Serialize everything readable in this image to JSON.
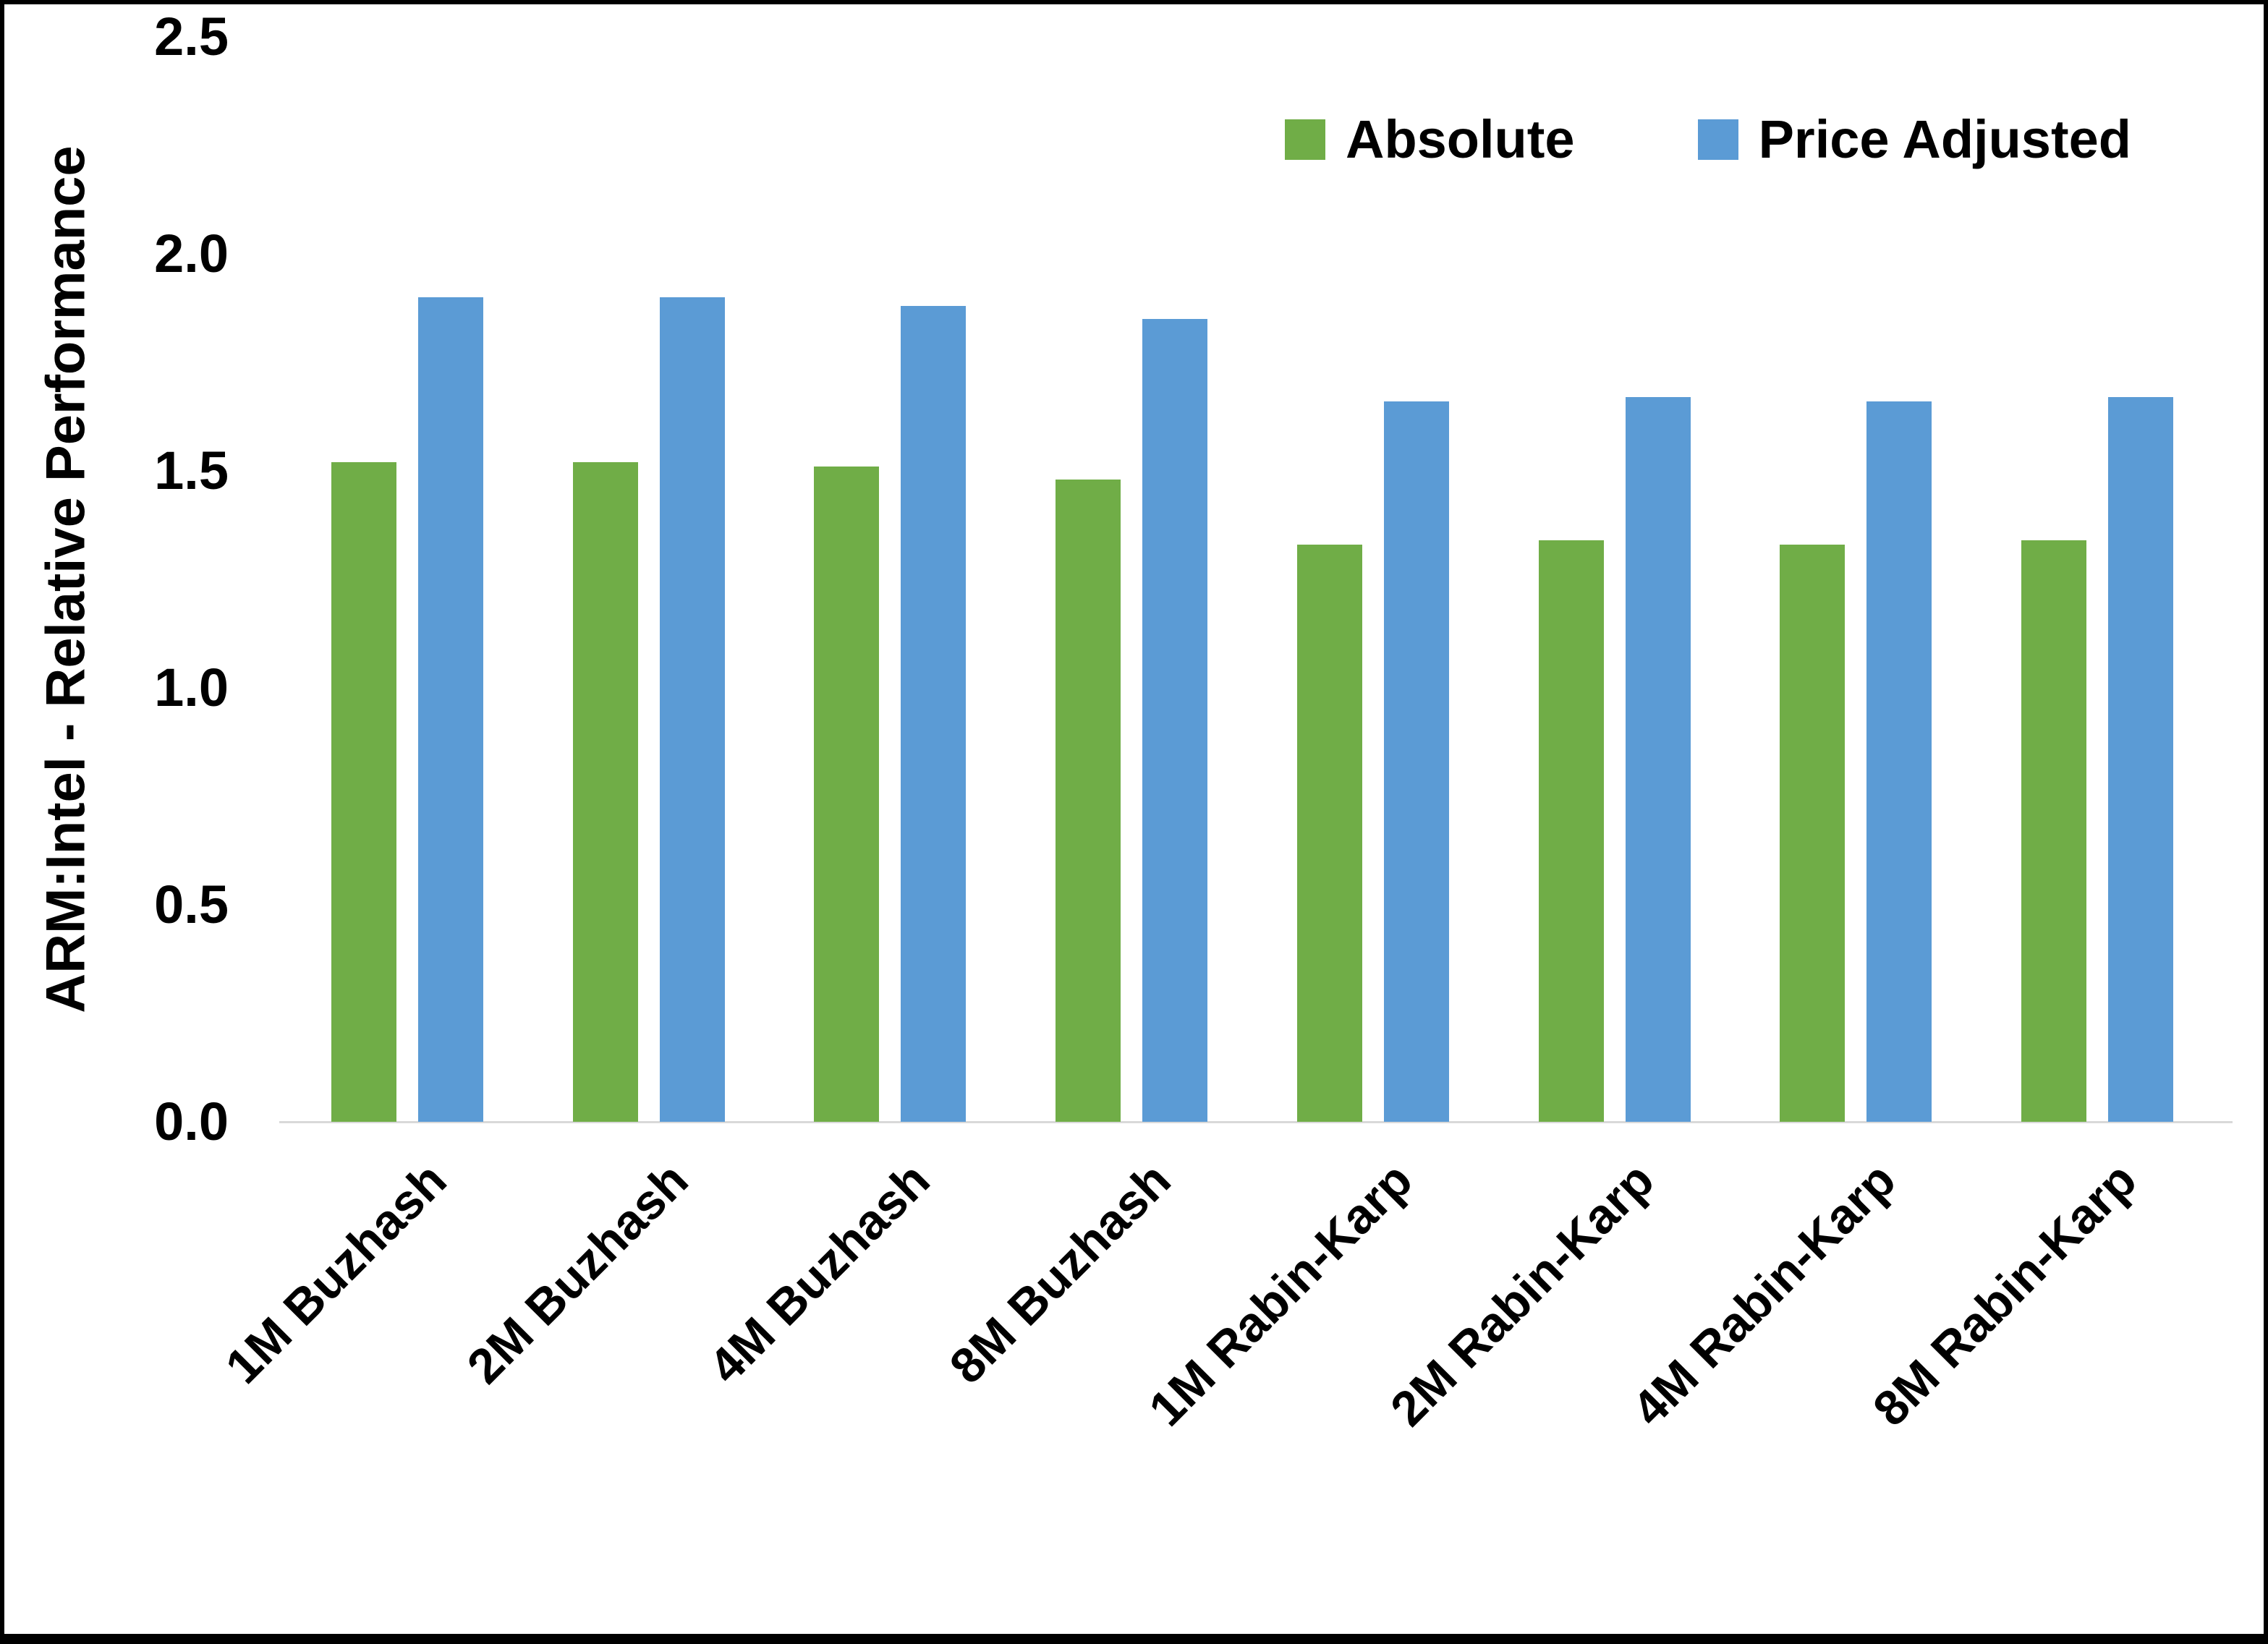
{
  "chart_data": {
    "type": "bar",
    "title": "",
    "xlabel": "",
    "ylabel": "ARM:Intel - Relative Performance",
    "ylim": [
      0,
      2.5
    ],
    "y_tick_labels": [
      "0.0",
      "0.5",
      "1.0",
      "1.5",
      "2.0",
      "2.5"
    ],
    "categories": [
      "1M Buzhash",
      "2M Buzhash",
      "4M Buzhash",
      "8M Buzhash",
      "1M Rabin-Karp",
      "2M Rabin-Karp",
      "4M Rabin-Karp",
      "8M Rabin-Karp"
    ],
    "series": [
      {
        "name": "Absolute",
        "color": "#70AD47",
        "values": [
          1.52,
          1.52,
          1.51,
          1.48,
          1.33,
          1.34,
          1.33,
          1.34
        ]
      },
      {
        "name": "Price Adjusted",
        "color": "#5B9BD5",
        "values": [
          1.9,
          1.9,
          1.88,
          1.85,
          1.66,
          1.67,
          1.66,
          1.67
        ]
      }
    ],
    "legend_position": "top-right",
    "grid": false,
    "colors": {
      "background": "#ffffff",
      "frame": "#000000",
      "axis_line": "#d9d9d9",
      "text": "#000000"
    }
  }
}
